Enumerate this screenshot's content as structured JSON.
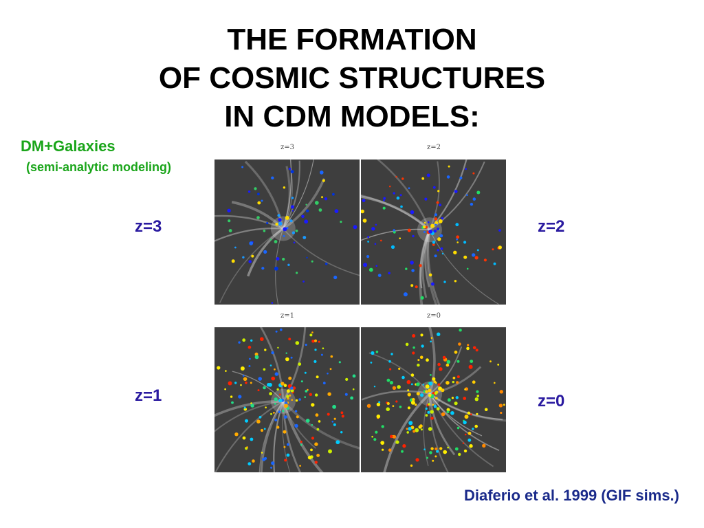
{
  "title": {
    "line1": "THE FORMATION",
    "line2": "OF COSMIC STRUCTURES",
    "line3": "IN CDM MODELS:"
  },
  "subtitle": "DM+Galaxies",
  "subtitle_note": "(semi-analytic modeling)",
  "labels": {
    "z3": "z=3",
    "z2": "z=2",
    "z1": "z=1",
    "z0": "z=0"
  },
  "panel_captions": {
    "p3": "z=3",
    "p2": "z=2",
    "p1": "z=1",
    "p0": "z=0"
  },
  "citation": "Diaferio et al. 1999 (GIF sims.)",
  "colors": {
    "title": "#000000",
    "subtitle": "#1aa51a",
    "zlabel": "#2a1aa0",
    "citation": "#1a2a8a"
  }
}
